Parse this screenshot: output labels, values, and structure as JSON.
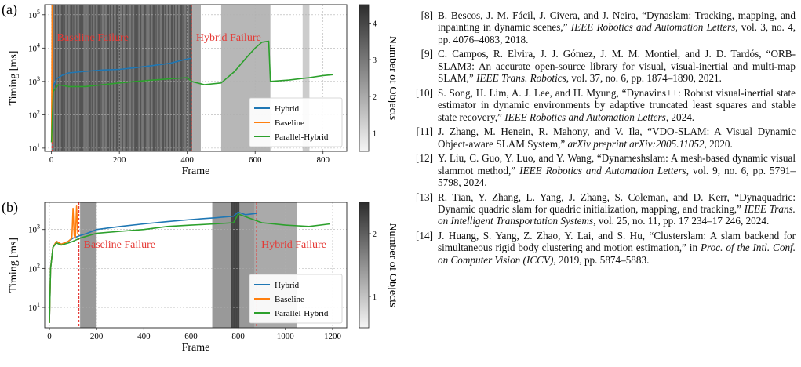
{
  "figure": {
    "chart_data": [
      {
        "panel": "(a)",
        "type": "line",
        "xlabel": "Frame",
        "ylabel": "Timing [ms]",
        "colorbar_label": "Number of Objects",
        "colorbar_range": [
          0.5,
          4.5
        ],
        "colorbar_ticks": [
          "1",
          "2",
          "3",
          "4"
        ],
        "y_scale": "log",
        "xlim": [
          -20,
          870
        ],
        "ylim": [
          8,
          200000
        ],
        "x_ticks": [
          0,
          200,
          400,
          600,
          800
        ],
        "y_ticks": [
          10,
          100,
          1000,
          10000,
          100000
        ],
        "y_tick_labels": [
          "10^1",
          "10^2",
          "10^3",
          "10^4",
          "10^5"
        ],
        "grid": true,
        "legend_position": "bottom-right",
        "annotations": [
          {
            "text": "Baseline Failure",
            "x": 2,
            "color": "#e53935"
          },
          {
            "text": "Hybrid Failure",
            "x": 412,
            "color": "#e53935"
          }
        ],
        "background_bands": [
          {
            "x0": 0,
            "x1": 415,
            "level": 3.5
          },
          {
            "x0": 415,
            "x1": 440,
            "level": 2.2
          },
          {
            "x0": 500,
            "x1": 540,
            "level": 2.0
          },
          {
            "x0": 540,
            "x1": 645,
            "level": 2.0
          },
          {
            "x0": 740,
            "x1": 760,
            "level": 1.5
          }
        ],
        "series": [
          {
            "name": "Hybrid",
            "color": "#1f77b4",
            "x": [
              0,
              5,
              15,
              30,
              50,
              100,
              150,
              200,
              250,
              300,
              350,
              390,
              412
            ],
            "y": [
              15,
              700,
              1200,
              1500,
              1800,
              2000,
              2200,
              2300,
              2600,
              3000,
              3500,
              4500,
              5000
            ]
          },
          {
            "name": "Baseline",
            "color": "#ff7f0e",
            "x": [
              0,
              2,
              3
            ],
            "y": [
              15,
              200000,
              15
            ]
          },
          {
            "name": "Parallel-Hybrid",
            "color": "#2ca02c",
            "x": [
              0,
              5,
              20,
              50,
              100,
              150,
              200,
              250,
              300,
              350,
              400,
              412,
              450,
              500,
              540,
              560,
              580,
              600,
              620,
              640,
              645,
              700,
              760,
              800,
              830
            ],
            "y": [
              15,
              500,
              800,
              700,
              700,
              800,
              900,
              1000,
              1100,
              1200,
              1300,
              1000,
              800,
              900,
              2000,
              3500,
              6000,
              10000,
              15000,
              16000,
              1000,
              1100,
              1300,
              1500,
              1600
            ]
          }
        ]
      },
      {
        "panel": "(b)",
        "type": "line",
        "xlabel": "Frame",
        "ylabel": "Timing [ms]",
        "colorbar_label": "Number of Objects",
        "colorbar_range": [
          0.5,
          2.5
        ],
        "colorbar_ticks": [
          "1",
          "2"
        ],
        "y_scale": "log",
        "xlim": [
          -20,
          1260
        ],
        "ylim": [
          3,
          5000
        ],
        "x_ticks": [
          0,
          200,
          400,
          600,
          800,
          1000,
          1200
        ],
        "y_ticks": [
          10,
          100,
          1000
        ],
        "y_tick_labels": [
          "10^1",
          "10^2",
          "10^3"
        ],
        "grid": true,
        "legend_position": "bottom-right",
        "annotations": [
          {
            "text": "Baseline Failure",
            "x": 125,
            "color": "#e53935"
          },
          {
            "text": "Hybrid Failure",
            "x": 878,
            "color": "#e53935"
          }
        ],
        "background_bands": [
          {
            "x0": 130,
            "x1": 200,
            "level": 1.6
          },
          {
            "x0": 690,
            "x1": 870,
            "level": 1.6
          },
          {
            "x0": 870,
            "x1": 1050,
            "level": 1.4
          }
        ],
        "series": [
          {
            "name": "Hybrid",
            "color": "#1f77b4",
            "x": [
              0,
              5,
              15,
              30,
              50,
              80,
              100,
              130,
              160,
              200,
              300,
              400,
              500,
              600,
              700,
              780,
              800,
              830,
              878
            ],
            "y": [
              4,
              100,
              350,
              500,
              420,
              500,
              600,
              700,
              800,
              1000,
              1200,
              1400,
              1600,
              1800,
              2000,
              2200,
              2800,
              2400,
              2600
            ]
          },
          {
            "name": "Baseline",
            "color": "#ff7f0e",
            "x": [
              0,
              5,
              15,
              30,
              50,
              80,
              95,
              100,
              105,
              110,
              115,
              120,
              125
            ],
            "y": [
              4,
              100,
              350,
              500,
              420,
              500,
              600,
              3500,
              700,
              600,
              4000,
              800,
              700
            ]
          },
          {
            "name": "Parallel-Hybrid",
            "color": "#2ca02c",
            "x": [
              0,
              5,
              15,
              30,
              50,
              80,
              100,
              130,
              200,
              300,
              400,
              500,
              600,
              700,
              780,
              800,
              900,
              1000,
              1100,
              1190
            ],
            "y": [
              4,
              100,
              350,
              450,
              400,
              450,
              500,
              600,
              800,
              900,
              1000,
              1200,
              1300,
              1400,
              1500,
              2500,
              1500,
              1300,
              1200,
              1400
            ]
          }
        ]
      }
    ]
  },
  "references": [
    {
      "num": "[8]",
      "parts": [
        {
          "t": "B. Bescos, J. M. Fácil, J. Civera, and J. Neira, “Dynaslam: Tracking, mapping, and inpainting in dynamic scenes,” "
        },
        {
          "t": "IEEE Robotics and Automation Letters",
          "i": true
        },
        {
          "t": ", vol. 3, no. 4, pp. 4076–4083, 2018."
        }
      ]
    },
    {
      "num": "[9]",
      "parts": [
        {
          "t": "C. Campos, R. Elvira, J. J. Gómez, J. M. M. Montiel, and J. D. Tardós, “ORB-SLAM3: An accurate open-source library for visual, visual-inertial and multi-map SLAM,” "
        },
        {
          "t": "IEEE Trans. Robotics",
          "i": true
        },
        {
          "t": ", vol. 37, no. 6, pp. 1874–1890, 2021."
        }
      ]
    },
    {
      "num": "[10]",
      "parts": [
        {
          "t": "S. Song, H. Lim, A. J. Lee, and H. Myung, “Dynavins++: Robust visual-inertial state estimator in dynamic environments by adaptive truncated least squares and stable state recovery,” "
        },
        {
          "t": "IEEE Robotics and Automation Letters",
          "i": true
        },
        {
          "t": ", 2024."
        }
      ]
    },
    {
      "num": "[11]",
      "parts": [
        {
          "t": "J. Zhang, M. Henein, R. Mahony, and V. Ila, “VDO-SLAM: A Visual Dynamic Object-aware SLAM System,” "
        },
        {
          "t": "arXiv preprint arXiv:2005.11052",
          "i": true
        },
        {
          "t": ", 2020."
        }
      ]
    },
    {
      "num": "[12]",
      "parts": [
        {
          "t": "Y. Liu, C. Guo, Y. Luo, and Y. Wang, “Dynameshslam: A mesh-based dynamic visual slammot method,” "
        },
        {
          "t": "IEEE Robotics and Automation Letters",
          "i": true
        },
        {
          "t": ", vol. 9, no. 6, pp. 5791–5798, 2024."
        }
      ]
    },
    {
      "num": "[13]",
      "parts": [
        {
          "t": "R. Tian, Y. Zhang, L. Yang, J. Zhang, S. Coleman, and D. Kerr, “Dynaquadric: Dynamic quadric slam for quadric initialization, mapping, and tracking,” "
        },
        {
          "t": "IEEE Trans. on Intelligent Transportation Systems",
          "i": true
        },
        {
          "t": ", vol. 25, no. 11, pp. 17 234–17 246, 2024."
        }
      ]
    },
    {
      "num": "[14]",
      "parts": [
        {
          "t": "J. Huang, S. Yang, Z. Zhao, Y. Lai, and S. Hu, “Clusterslam: A slam backend for simultaneous rigid body clustering and motion estimation,” in "
        },
        {
          "t": "Proc. of the Intl. Conf. on Computer Vision (ICCV)",
          "i": true
        },
        {
          "t": ", 2019, pp. 5874–5883."
        }
      ]
    }
  ]
}
